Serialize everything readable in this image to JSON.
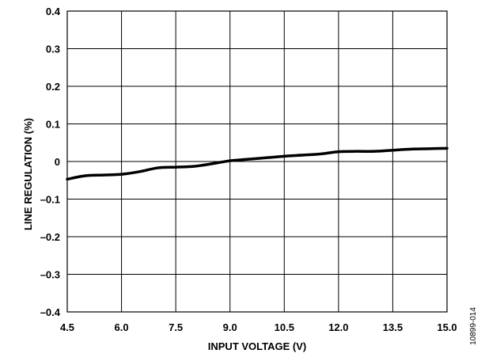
{
  "chart_data": {
    "type": "line",
    "xlabel": "INPUT VOLTAGE (V)",
    "ylabel": "LINE REGULATION (%)",
    "xlim": [
      4.5,
      15.0
    ],
    "ylim": [
      -0.4,
      0.4
    ],
    "x_ticks": [
      4.5,
      6.0,
      7.5,
      9.0,
      10.5,
      12.0,
      13.5,
      15.0
    ],
    "x_tick_labels": [
      "4.5",
      "6.0",
      "7.5",
      "9.0",
      "10.5",
      "12.0",
      "13.5",
      "15.0"
    ],
    "y_ticks": [
      0.4,
      0.3,
      0.2,
      0.1,
      0,
      -0.1,
      -0.2,
      -0.3,
      -0.4
    ],
    "y_tick_labels": [
      "0.4",
      "0.3",
      "0.2",
      "0.1",
      "0",
      "–0.1",
      "–0.2",
      "–0.3",
      "–0.4"
    ],
    "grid": true,
    "figure_id": "10899-014",
    "series": [
      {
        "x": [
          4.5,
          5.0,
          5.5,
          6.0,
          6.5,
          7.0,
          7.5,
          8.0,
          8.5,
          9.0,
          9.5,
          10.0,
          10.5,
          11.0,
          11.5,
          12.0,
          12.5,
          13.0,
          13.5,
          14.0,
          14.5,
          15.0
        ],
        "y": [
          -0.047,
          -0.038,
          -0.036,
          -0.034,
          -0.027,
          -0.017,
          -0.015,
          -0.013,
          -0.006,
          0.002,
          0.006,
          0.01,
          0.014,
          0.017,
          0.02,
          0.026,
          0.027,
          0.027,
          0.03,
          0.033,
          0.034,
          0.035
        ]
      }
    ]
  }
}
